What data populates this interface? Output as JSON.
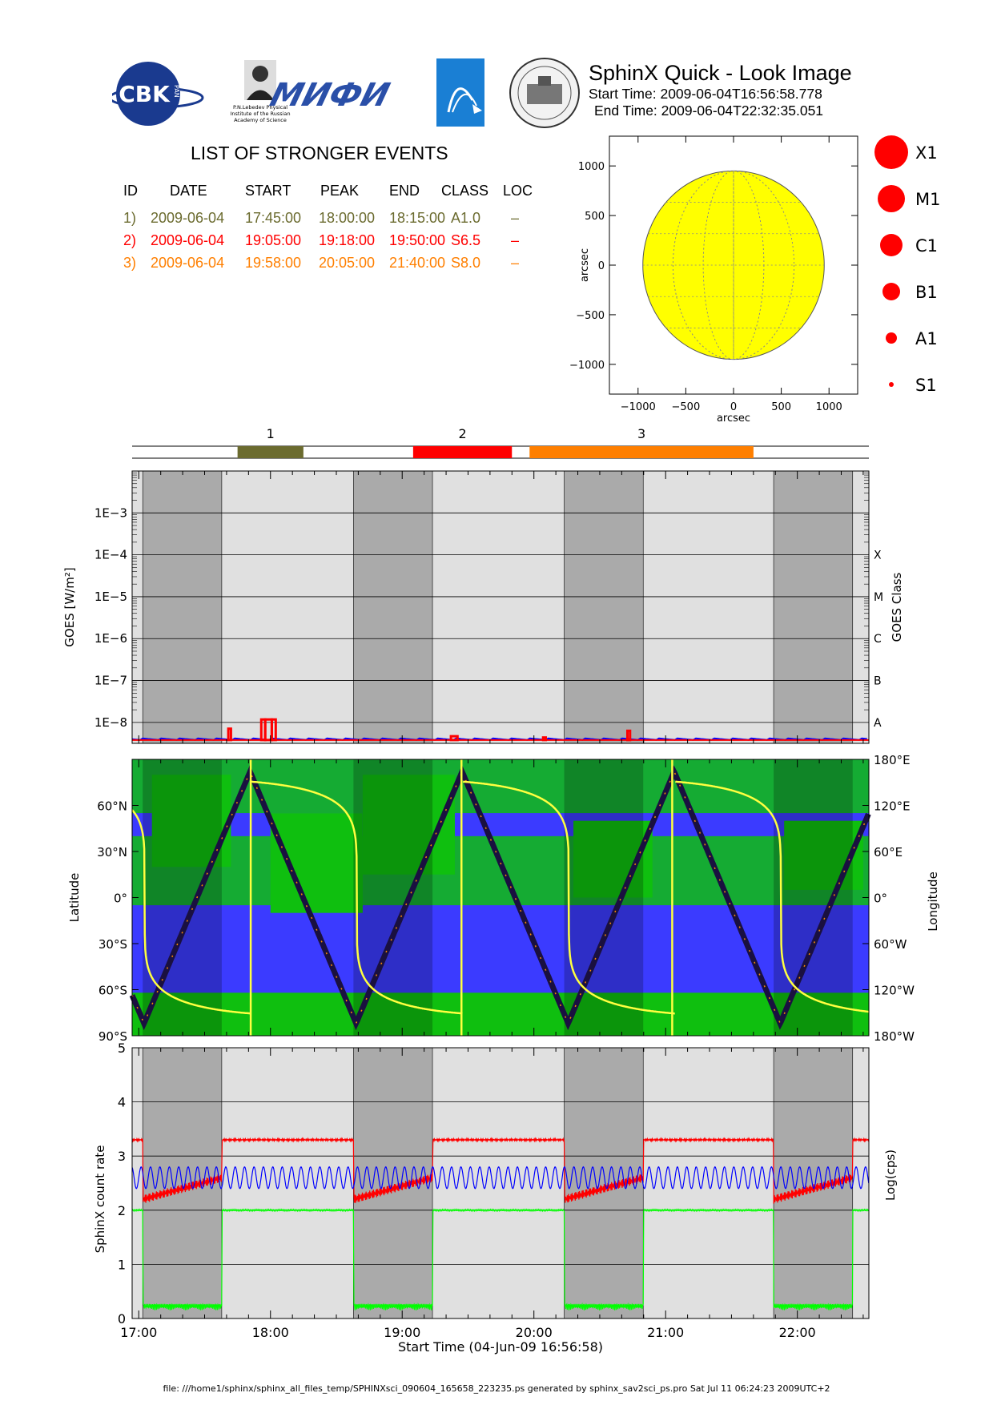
{
  "header": {
    "title": "SphinX Quick - Look Image",
    "start_time": "Start Time: 2009-06-04T16:56:58.778",
    "end_time": "End Time: 2009-06-04T22:32:35.051",
    "logos": {
      "cbk": "CBK",
      "cbk_small": "PAN",
      "lebedev": "P.N.Lebedev Physical Institute of the Russian Academy of Science",
      "lebedev_lines": [
        "P.N.Lebedev Physical",
        "Institute of the Russian",
        "Academy of Science"
      ],
      "mifi": "МИФИ"
    }
  },
  "events": {
    "title": "LIST OF STRONGER EVENTS",
    "columns": [
      "ID",
      "DATE",
      "START",
      "PEAK",
      "END",
      "CLASS",
      "LOC"
    ],
    "rows": [
      {
        "id": "1)",
        "date": "2009-06-04",
        "start": "17:45:00",
        "peak": "18:00:00",
        "end": "18:15:00",
        "class": "A1.0",
        "loc": "–",
        "color": "#6b6b2f"
      },
      {
        "id": "2)",
        "date": "2009-06-04",
        "start": "19:05:00",
        "peak": "19:18:00",
        "end": "19:50:00",
        "class": "S6.5",
        "loc": "–",
        "color": "#ff0000"
      },
      {
        "id": "3)",
        "date": "2009-06-04",
        "start": "19:58:00",
        "peak": "20:05:00",
        "end": "21:40:00",
        "class": "S8.0",
        "loc": "–",
        "color": "#ff7f00"
      }
    ]
  },
  "legend_classes": [
    "X1",
    "M1",
    "C1",
    "B1",
    "A1",
    "S1"
  ],
  "timeline": {
    "start_hour": 16.9497,
    "end_hour": 22.5431,
    "x_ticks": [
      "17:00",
      "18:00",
      "19:00",
      "20:00",
      "21:00",
      "22:00"
    ],
    "x_tick_hours": [
      17,
      18,
      19,
      20,
      21,
      22
    ],
    "xlabel": "Start Time (04-Jun-09 16:56:58)",
    "shadow_intervals": [
      [
        17.03,
        17.63
      ],
      [
        18.63,
        19.23
      ],
      [
        20.23,
        20.83
      ],
      [
        21.82,
        22.42
      ]
    ]
  },
  "chart_data": [
    {
      "type": "scatter",
      "name": "sun-map",
      "xlabel": "arcsec",
      "ylabel": "arcsec",
      "xlim": [
        -1300,
        1300
      ],
      "ylim": [
        -1300,
        1300
      ],
      "x_ticks": [
        -1000,
        -500,
        0,
        500,
        1000
      ],
      "y_ticks": [
        -1000,
        -500,
        0,
        500,
        1000
      ],
      "x_tick_labels": [
        "−1000",
        "−500",
        "0",
        "500",
        "1000"
      ],
      "y_tick_labels": [
        "−1000",
        "−500",
        "0",
        "500",
        "1000"
      ],
      "disk_radius": 950,
      "disk_color": "#ffff00"
    },
    {
      "type": "bar",
      "name": "event-bar",
      "events": [
        {
          "label": "1",
          "start": 17.75,
          "end": 18.25,
          "color": "#6b6b2f"
        },
        {
          "label": "2",
          "start": 19.083,
          "end": 19.833,
          "color": "#ff0000"
        },
        {
          "label": "3",
          "start": 19.967,
          "end": 21.667,
          "color": "#ff7f00"
        }
      ]
    },
    {
      "type": "line",
      "name": "goes-flux",
      "ylabel": "GOES [W/m²]",
      "ylabel_right": "GOES Class",
      "log_ylim": [
        -8.5,
        -2.0
      ],
      "y_tick_labels": [
        "1E−3",
        "1E−4",
        "1E−5",
        "1E−6",
        "1E−7",
        "1E−8"
      ],
      "y_tick_values": [
        -3,
        -4,
        -5,
        -6,
        -7,
        -8
      ],
      "class_labels": [
        "X",
        "M",
        "C",
        "B",
        "A"
      ],
      "class_values": [
        -4,
        -5,
        -6,
        -7,
        -8
      ],
      "red_baseline_log": -8.42,
      "red_spikes": [
        {
          "start": 17.68,
          "end": 17.7,
          "log": -8.15
        },
        {
          "start": 17.93,
          "end": 17.96,
          "log": -7.93
        },
        {
          "start": 17.96,
          "end": 18.01,
          "log": -7.93
        },
        {
          "start": 18.01,
          "end": 18.04,
          "log": -7.93
        },
        {
          "start": 19.37,
          "end": 19.42,
          "log": -8.33
        },
        {
          "start": 20.07,
          "end": 20.09,
          "log": -8.36
        },
        {
          "start": 20.71,
          "end": 20.73,
          "log": -8.2
        }
      ],
      "blue_baseline_log": -8.4
    },
    {
      "type": "line",
      "name": "orbit-map",
      "ylabel": "Latitude",
      "ylabel_right": "Longitude",
      "ylim": [
        -90,
        90
      ],
      "y_tick_labels": [
        "90°S",
        "60°S",
        "30°S",
        "0°",
        "30°N",
        "60°N"
      ],
      "y_tick_values": [
        -90,
        -60,
        -30,
        0,
        30,
        60
      ],
      "right_tick_labels": [
        "180°W",
        "120°W",
        "60°W",
        "0°",
        "60°E",
        "120°E",
        "180°E"
      ],
      "right_tick_values": [
        -180,
        -120,
        -60,
        0,
        60,
        120,
        180
      ],
      "orbit_period_hours": 1.61,
      "latitude_peak": 82,
      "orbit_minimum_hours": [
        17.04,
        18.65,
        20.26,
        21.87
      ],
      "longitude_jumps_hours": [
        17.85,
        19.45,
        21.05
      ],
      "background_colors": {
        "ocean": "#3b3bff",
        "land": "#0fbf0f",
        "shadow_ocean": "#2020c8",
        "shadow_land": "#0a8a0a"
      }
    },
    {
      "type": "line",
      "name": "sphinx-count-rate",
      "ylabel": "SphinX count rate",
      "ylabel_right": "Log(cps)",
      "ylim": [
        0,
        5
      ],
      "y_ticks": [
        0,
        1,
        2,
        3,
        4,
        5
      ],
      "series": [
        {
          "color": "#ff0000",
          "day_level": 3.3,
          "shadow_level": 2.2
        },
        {
          "color": "#0000ff",
          "day_level": 2.6,
          "amplitude": 0.2
        },
        {
          "color": "#00ff00",
          "day_level": 2.0,
          "shadow_level": 0.15
        }
      ]
    }
  ],
  "footer": "file: ///home1/sphinx/sphinx_all_files_temp/SPHINXsci_090604_165658_223235.ps generated by sphinx_sav2sci_ps.pro Sat Jul 11 06:24:23 2009UTC+2"
}
